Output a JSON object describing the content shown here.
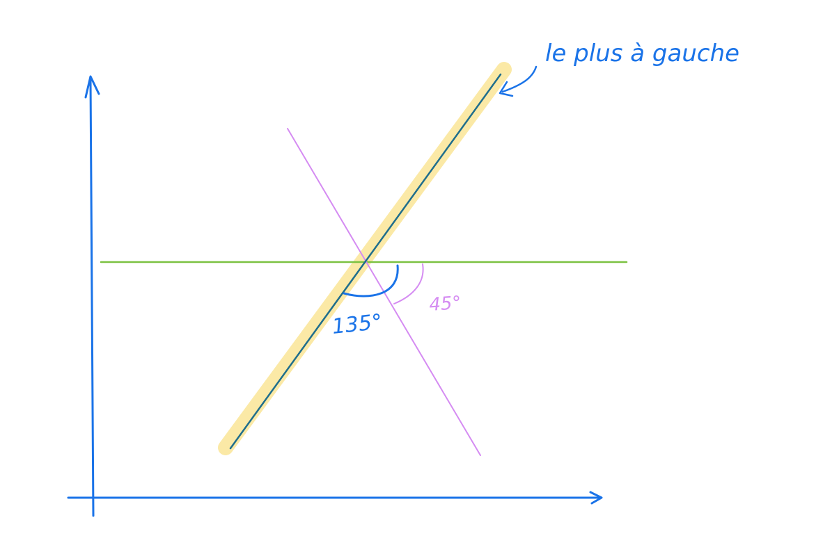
{
  "annotation": {
    "text": "le plus à gauche"
  },
  "angles": {
    "obtuse": "135°",
    "acute": "45°"
  },
  "colors": {
    "axes": "#1a73e8",
    "highlight": "#fbe9a6",
    "leftmost_line": "#1f6e8c",
    "other_line": "#d58cf2",
    "horizontal": "#7cc242",
    "annotation": "#1a73e8"
  }
}
